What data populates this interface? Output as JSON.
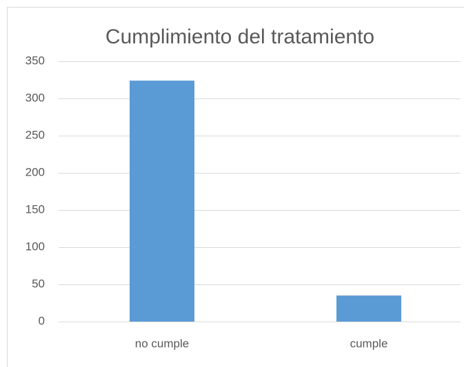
{
  "chart_data": {
    "type": "bar",
    "title": "Cumplimiento del tratamiento",
    "categories": [
      "no cumple",
      "cumple"
    ],
    "values": [
      324,
      35
    ],
    "color": "#5b9bd5",
    "ylim": [
      0,
      350
    ],
    "yticks": [
      0,
      50,
      100,
      150,
      200,
      250,
      300,
      350
    ],
    "grid": true
  }
}
